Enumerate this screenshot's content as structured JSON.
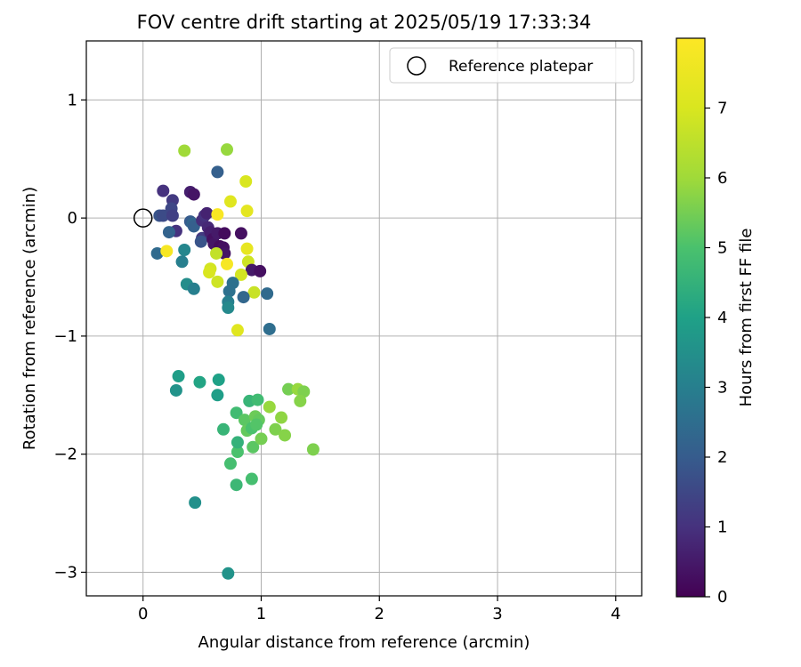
{
  "chart_data": {
    "type": "scatter",
    "title": "FOV centre drift starting at 2025/05/19 17:33:34",
    "xlabel": "Angular distance from reference (arcmin)",
    "ylabel": "Rotation from reference (arcmin)",
    "xlim": [
      -0.48,
      4.22
    ],
    "ylim": [
      -3.2,
      1.5
    ],
    "xticks": [
      0,
      1,
      2,
      3,
      4
    ],
    "xtick_labels": [
      "0",
      "1",
      "2",
      "3",
      "4"
    ],
    "yticks": [
      1,
      0,
      -1,
      -2,
      -3
    ],
    "ytick_labels": [
      "1",
      "0",
      "−1",
      "−2",
      "−3"
    ],
    "grid": true,
    "legend": {
      "location": "top-right",
      "entries": [
        "Reference platepar"
      ]
    },
    "colorbar": {
      "label": "Hours from first FF file",
      "range": [
        0,
        8
      ],
      "ticks": [
        0,
        1,
        2,
        3,
        4,
        5,
        6,
        7
      ],
      "colormap": "viridis"
    },
    "reference_point": {
      "x": 0,
      "y": 0
    },
    "points": [
      {
        "x": 0.17,
        "y": 0.23,
        "c": 1.0
      },
      {
        "x": 0.25,
        "y": 0.15,
        "c": 1.2
      },
      {
        "x": 0.14,
        "y": 0.02,
        "c": 1.8
      },
      {
        "x": 0.17,
        "y": 0.02,
        "c": 1.6
      },
      {
        "x": 0.24,
        "y": 0.08,
        "c": 1.5
      },
      {
        "x": 0.25,
        "y": 0.02,
        "c": 1.3
      },
      {
        "x": 0.28,
        "y": -0.11,
        "c": 1.0
      },
      {
        "x": 0.22,
        "y": -0.12,
        "c": 2.2
      },
      {
        "x": 0.12,
        "y": -0.3,
        "c": 2.4
      },
      {
        "x": 0.2,
        "y": -0.28,
        "c": 7.8
      },
      {
        "x": 0.4,
        "y": 0.22,
        "c": 0.6
      },
      {
        "x": 0.43,
        "y": 0.2,
        "c": 0.4
      },
      {
        "x": 0.4,
        "y": -0.03,
        "c": 2.0
      },
      {
        "x": 0.42,
        "y": -0.05,
        "c": 2.3
      },
      {
        "x": 0.43,
        "y": -0.07,
        "c": 2.1
      },
      {
        "x": 0.5,
        "y": -0.02,
        "c": 0.9
      },
      {
        "x": 0.52,
        "y": 0.02,
        "c": 1.0
      },
      {
        "x": 0.54,
        "y": 0.04,
        "c": 0.7
      },
      {
        "x": 0.5,
        "y": -0.17,
        "c": 1.2
      },
      {
        "x": 0.49,
        "y": -0.2,
        "c": 1.8
      },
      {
        "x": 0.55,
        "y": -0.08,
        "c": 0.8
      },
      {
        "x": 0.57,
        "y": -0.12,
        "c": 0.6
      },
      {
        "x": 0.59,
        "y": -0.18,
        "c": 0.3
      },
      {
        "x": 0.6,
        "y": -0.22,
        "c": 0.4
      },
      {
        "x": 0.63,
        "y": -0.13,
        "c": 0.5
      },
      {
        "x": 0.65,
        "y": -0.24,
        "c": 0.2
      },
      {
        "x": 0.68,
        "y": -0.25,
        "c": 0.3
      },
      {
        "x": 0.69,
        "y": -0.3,
        "c": 0.4
      },
      {
        "x": 0.69,
        "y": -0.13,
        "c": 0.2
      },
      {
        "x": 0.62,
        "y": -0.3,
        "c": 6.6
      },
      {
        "x": 0.63,
        "y": 0.03,
        "c": 7.9
      },
      {
        "x": 0.63,
        "y": 0.39,
        "c": 2.1
      },
      {
        "x": 0.74,
        "y": 0.14,
        "c": 7.2
      },
      {
        "x": 0.71,
        "y": 0.58,
        "c": 5.9
      },
      {
        "x": 0.35,
        "y": 0.57,
        "c": 6.0
      },
      {
        "x": 0.87,
        "y": 0.31,
        "c": 7.0
      },
      {
        "x": 0.88,
        "y": 0.06,
        "c": 7.3
      },
      {
        "x": 0.83,
        "y": -0.13,
        "c": 0.3
      },
      {
        "x": 0.88,
        "y": -0.26,
        "c": 7.4
      },
      {
        "x": 0.89,
        "y": -0.37,
        "c": 6.8
      },
      {
        "x": 0.92,
        "y": -0.44,
        "c": 0.5
      },
      {
        "x": 0.99,
        "y": -0.45,
        "c": 0.3
      },
      {
        "x": 0.83,
        "y": -0.48,
        "c": 6.9
      },
      {
        "x": 0.76,
        "y": -0.55,
        "c": 2.6
      },
      {
        "x": 0.71,
        "y": -0.39,
        "c": 7.8
      },
      {
        "x": 0.57,
        "y": -0.43,
        "c": 6.9
      },
      {
        "x": 0.56,
        "y": -0.46,
        "c": 7.0
      },
      {
        "x": 0.63,
        "y": -0.54,
        "c": 6.8
      },
      {
        "x": 0.94,
        "y": -0.63,
        "c": 6.7
      },
      {
        "x": 1.05,
        "y": -0.64,
        "c": 2.4
      },
      {
        "x": 0.73,
        "y": -0.62,
        "c": 2.6
      },
      {
        "x": 0.72,
        "y": -0.71,
        "c": 3.0
      },
      {
        "x": 0.72,
        "y": -0.76,
        "c": 3.3
      },
      {
        "x": 0.85,
        "y": -0.67,
        "c": 2.3
      },
      {
        "x": 0.8,
        "y": -0.95,
        "c": 7.2
      },
      {
        "x": 1.07,
        "y": -0.94,
        "c": 2.5
      },
      {
        "x": 0.35,
        "y": -0.27,
        "c": 3.2
      },
      {
        "x": 0.33,
        "y": -0.37,
        "c": 3.0
      },
      {
        "x": 0.37,
        "y": -0.56,
        "c": 3.4
      },
      {
        "x": 0.43,
        "y": -0.6,
        "c": 3.0
      },
      {
        "x": 0.3,
        "y": -1.34,
        "c": 3.9
      },
      {
        "x": 0.28,
        "y": -1.46,
        "c": 3.6
      },
      {
        "x": 0.48,
        "y": -1.39,
        "c": 4.1
      },
      {
        "x": 0.64,
        "y": -1.37,
        "c": 4.0
      },
      {
        "x": 0.63,
        "y": -1.5,
        "c": 3.9
      },
      {
        "x": 0.68,
        "y": -1.79,
        "c": 4.6
      },
      {
        "x": 0.74,
        "y": -2.08,
        "c": 4.9
      },
      {
        "x": 0.79,
        "y": -2.26,
        "c": 4.7
      },
      {
        "x": 0.8,
        "y": -1.98,
        "c": 5.0
      },
      {
        "x": 0.8,
        "y": -1.9,
        "c": 4.5
      },
      {
        "x": 0.79,
        "y": -1.65,
        "c": 4.8
      },
      {
        "x": 0.86,
        "y": -1.71,
        "c": 5.2
      },
      {
        "x": 0.88,
        "y": -1.8,
        "c": 5.3
      },
      {
        "x": 0.9,
        "y": -1.55,
        "c": 4.6
      },
      {
        "x": 0.97,
        "y": -1.54,
        "c": 4.8
      },
      {
        "x": 0.92,
        "y": -1.78,
        "c": 5.0
      },
      {
        "x": 0.95,
        "y": -1.68,
        "c": 5.4
      },
      {
        "x": 0.98,
        "y": -1.71,
        "c": 5.3
      },
      {
        "x": 0.96,
        "y": -1.75,
        "c": 5.1
      },
      {
        "x": 0.93,
        "y": -1.94,
        "c": 5.2
      },
      {
        "x": 0.92,
        "y": -2.21,
        "c": 4.9
      },
      {
        "x": 1.0,
        "y": -1.87,
        "c": 5.5
      },
      {
        "x": 1.07,
        "y": -1.6,
        "c": 5.9
      },
      {
        "x": 1.12,
        "y": -1.79,
        "c": 5.6
      },
      {
        "x": 1.17,
        "y": -1.69,
        "c": 5.8
      },
      {
        "x": 1.2,
        "y": -1.84,
        "c": 5.7
      },
      {
        "x": 1.23,
        "y": -1.45,
        "c": 5.5
      },
      {
        "x": 1.31,
        "y": -1.45,
        "c": 5.9
      },
      {
        "x": 1.36,
        "y": -1.47,
        "c": 5.6
      },
      {
        "x": 1.33,
        "y": -1.55,
        "c": 5.7
      },
      {
        "x": 1.44,
        "y": -1.96,
        "c": 5.6
      },
      {
        "x": 0.44,
        "y": -2.41,
        "c": 3.5
      },
      {
        "x": 0.72,
        "y": -3.01,
        "c": 3.6
      }
    ]
  }
}
